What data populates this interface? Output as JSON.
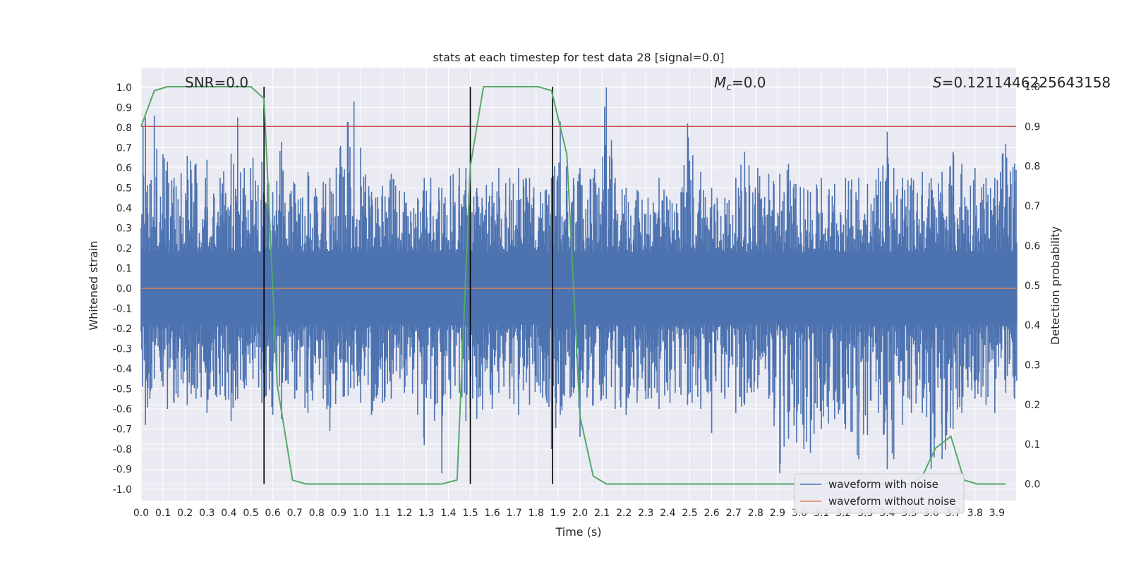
{
  "chart_data": {
    "type": "line",
    "title": "stats at each timestep for test data 28 [signal=0.0]",
    "xlabel": "Time (s)",
    "ylabel": "Whitened strain",
    "y2label": "Detection probability",
    "xlim": [
      0.0,
      3.99
    ],
    "ylim": [
      -1.1,
      1.1
    ],
    "y2lim": [
      -0.05,
      1.0
    ],
    "xticks": [
      "0.0",
      "0.1",
      "0.2",
      "0.3",
      "0.4",
      "0.5",
      "0.6",
      "0.7",
      "0.8",
      "0.9",
      "1.0",
      "1.1",
      "1.2",
      "1.3",
      "1.4",
      "1.5",
      "1.6",
      "1.7",
      "1.8",
      "1.9",
      "2.0",
      "2.1",
      "2.2",
      "2.3",
      "2.4",
      "2.5",
      "2.6",
      "2.7",
      "2.8",
      "2.9",
      "3.0",
      "3.1",
      "3.2",
      "3.3",
      "3.4",
      "3.5",
      "3.6",
      "3.7",
      "3.8",
      "3.9"
    ],
    "yticks": [
      "1.0",
      "0.9",
      "0.8",
      "0.7",
      "0.6",
      "0.5",
      "0.4",
      "0.3",
      "0.2",
      "0.1",
      "0.0",
      "-0.1",
      "-0.2",
      "-0.3",
      "-0.4",
      "-0.5",
      "-0.6",
      "-0.7",
      "-0.8",
      "-0.9",
      "-1.0"
    ],
    "y2ticks": [
      "0.0",
      "0.1",
      "0.2",
      "0.3",
      "0.4",
      "0.5",
      "0.6",
      "0.7",
      "0.8",
      "0.9",
      "1.0"
    ],
    "grid": true,
    "legend_placement": "lower-right",
    "annotations": {
      "snr": "SNR=0.0",
      "mc_symbol": "M",
      "mc_sub": "c",
      "mc_value": "=0.0",
      "s_symbol": "S",
      "s_value": "=0.1211446225643158"
    },
    "threshold": {
      "value": 0.9,
      "axis": "y2",
      "color": "#c44e52"
    },
    "vlines": [
      0.56,
      1.5,
      1.875
    ],
    "series": [
      {
        "name": "waveform with noise",
        "color": "#4c72b0",
        "x_start": 0.0,
        "x_end": 3.99,
        "envelope_note_free": true,
        "peaks": [
          [
            0.02,
            0.85,
            -0.68
          ],
          [
            0.04,
            0.52,
            -0.55
          ],
          [
            0.06,
            0.86,
            -0.45
          ],
          [
            0.12,
            0.63,
            -0.6
          ],
          [
            0.15,
            0.55,
            -0.57
          ],
          [
            0.21,
            0.66,
            -0.58
          ],
          [
            0.25,
            0.62,
            -0.55
          ],
          [
            0.3,
            0.64,
            -0.62
          ],
          [
            0.36,
            0.55,
            -0.53
          ],
          [
            0.41,
            0.67,
            -0.66
          ],
          [
            0.44,
            0.85,
            -0.55
          ],
          [
            0.47,
            0.6,
            -0.5
          ],
          [
            0.51,
            0.65,
            -0.45
          ],
          [
            0.55,
            0.63,
            -0.57
          ],
          [
            0.6,
            0.48,
            -0.63
          ],
          [
            0.64,
            0.73,
            -0.65
          ],
          [
            0.7,
            0.52,
            -0.55
          ],
          [
            0.76,
            0.58,
            -0.62
          ],
          [
            0.83,
            0.53,
            -0.55
          ],
          [
            0.86,
            0.55,
            -0.71
          ],
          [
            0.97,
            0.93,
            -0.5
          ],
          [
            1.0,
            0.7,
            -0.57
          ],
          [
            1.05,
            0.48,
            -0.63
          ],
          [
            1.1,
            0.51,
            -0.57
          ],
          [
            1.14,
            0.57,
            -0.55
          ],
          [
            1.2,
            0.48,
            -0.52
          ],
          [
            1.26,
            0.45,
            -0.63
          ],
          [
            1.29,
            0.55,
            -0.78
          ],
          [
            1.32,
            0.55,
            -0.55
          ],
          [
            1.37,
            0.5,
            -0.92
          ],
          [
            1.41,
            0.56,
            -0.55
          ],
          [
            1.45,
            0.6,
            -0.52
          ],
          [
            1.48,
            0.6,
            -0.66
          ],
          [
            1.53,
            0.5,
            -0.65
          ],
          [
            1.6,
            0.53,
            -0.6
          ],
          [
            1.63,
            0.6,
            -0.52
          ],
          [
            1.68,
            0.55,
            -0.55
          ],
          [
            1.72,
            0.6,
            -0.63
          ],
          [
            1.77,
            0.55,
            -0.58
          ],
          [
            1.82,
            0.48,
            -0.52
          ],
          [
            1.87,
            0.55,
            -0.8
          ],
          [
            1.91,
            0.83,
            -0.63
          ],
          [
            1.97,
            0.55,
            -0.52
          ],
          [
            2.0,
            0.6,
            -0.74
          ],
          [
            2.06,
            0.55,
            -0.58
          ],
          [
            2.12,
            1.0,
            -0.55
          ],
          [
            2.16,
            0.55,
            -0.6
          ],
          [
            2.21,
            0.5,
            -0.63
          ],
          [
            2.26,
            0.49,
            -0.57
          ],
          [
            2.31,
            0.45,
            -0.55
          ],
          [
            2.36,
            0.55,
            -0.6
          ],
          [
            2.41,
            0.44,
            -0.57
          ],
          [
            2.46,
            0.48,
            -0.53
          ],
          [
            2.49,
            0.82,
            -0.58
          ],
          [
            2.55,
            0.58,
            -0.6
          ],
          [
            2.6,
            0.5,
            -0.72
          ],
          [
            2.66,
            0.45,
            -0.55
          ],
          [
            2.71,
            0.55,
            -0.62
          ],
          [
            2.75,
            0.68,
            -0.58
          ],
          [
            2.81,
            0.6,
            -0.5
          ],
          [
            2.86,
            0.57,
            -0.55
          ],
          [
            2.91,
            0.57,
            -0.92
          ],
          [
            2.95,
            0.62,
            -0.75
          ],
          [
            3.02,
            0.5,
            -0.8
          ],
          [
            3.05,
            0.48,
            -0.82
          ],
          [
            3.1,
            0.55,
            -0.7
          ],
          [
            3.16,
            0.52,
            -0.65
          ],
          [
            3.21,
            0.55,
            -0.7
          ],
          [
            3.27,
            0.55,
            -0.85
          ],
          [
            3.31,
            0.52,
            -0.73
          ],
          [
            3.36,
            0.6,
            -0.62
          ],
          [
            3.4,
            0.78,
            -0.9
          ],
          [
            3.43,
            0.6,
            -0.85
          ],
          [
            3.47,
            0.55,
            -0.68
          ],
          [
            3.51,
            0.55,
            -0.62
          ],
          [
            3.56,
            0.58,
            -0.62
          ],
          [
            3.6,
            0.55,
            -0.9
          ],
          [
            3.65,
            0.58,
            -0.85
          ],
          [
            3.7,
            0.68,
            -0.7
          ],
          [
            3.74,
            0.62,
            -0.62
          ],
          [
            3.8,
            0.6,
            -0.55
          ],
          [
            3.85,
            0.55,
            -0.58
          ],
          [
            3.89,
            0.55,
            -0.62
          ],
          [
            3.94,
            0.72,
            -0.52
          ],
          [
            3.98,
            0.62,
            -0.55
          ]
        ]
      },
      {
        "name": "waveform without noise",
        "color": "#dd8452",
        "x": [
          0.0,
          3.99
        ],
        "values": [
          0.0,
          0.0
        ]
      },
      {
        "name": "detection probability",
        "color": "#55a868",
        "axis": "y2",
        "x": [
          0.0,
          0.06,
          0.12,
          0.25,
          0.37,
          0.5,
          0.56,
          0.62,
          0.69,
          0.75,
          0.81,
          0.88,
          1.0,
          1.12,
          1.25,
          1.37,
          1.44,
          1.5,
          1.56,
          1.62,
          1.69,
          1.75,
          1.81,
          1.87,
          1.94,
          2.0,
          2.06,
          2.12,
          2.19,
          2.25,
          2.5,
          2.75,
          3.0,
          3.25,
          3.5,
          3.56,
          3.62,
          3.69,
          3.75,
          3.81,
          3.94
        ],
        "values": [
          0.9,
          0.99,
          1.0,
          1.0,
          1.0,
          1.0,
          0.97,
          0.25,
          0.01,
          0.0,
          0.0,
          0.0,
          0.0,
          0.0,
          0.0,
          0.0,
          0.01,
          0.8,
          1.0,
          1.0,
          1.0,
          1.0,
          1.0,
          0.99,
          0.83,
          0.17,
          0.02,
          0.0,
          0.0,
          0.0,
          0.0,
          0.0,
          0.0,
          0.0,
          0.0,
          0.02,
          0.09,
          0.12,
          0.01,
          0.0,
          0.0
        ]
      }
    ]
  }
}
